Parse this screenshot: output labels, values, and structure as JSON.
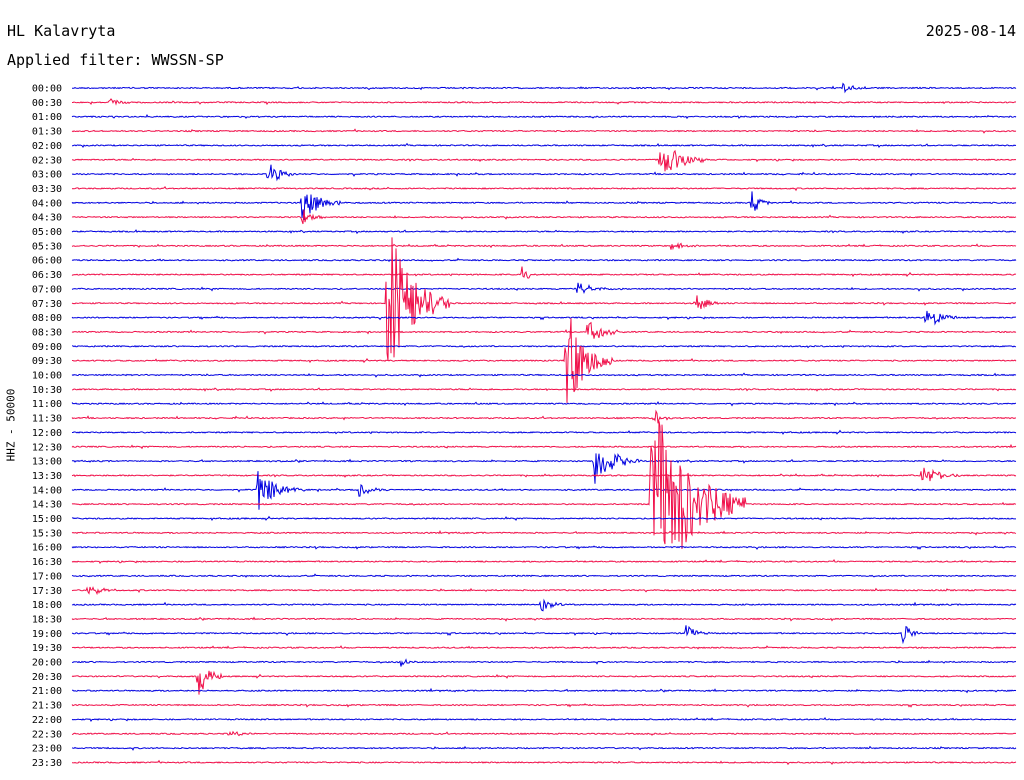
{
  "header": {
    "station": "HL Kalavryta",
    "filter": "Applied filter: WWSSN-SP",
    "date": "2025-08-14"
  },
  "colors": {
    "trace_a": "#0000e0",
    "trace_b": "#f0104a"
  },
  "chart_data": {
    "type": "helicorder",
    "title": "HL Kalavryta",
    "subtitle": "Applied filter: WWSSN-SP",
    "date": "2025-08-14",
    "ylabel": "HHZ - 50000",
    "row_minutes": 30,
    "alternating_colors": [
      "#0000e0",
      "#f0104a"
    ],
    "time_labels": [
      "00:00",
      "00:30",
      "01:00",
      "01:30",
      "02:00",
      "02:30",
      "03:00",
      "03:30",
      "04:00",
      "04:30",
      "05:00",
      "05:30",
      "06:00",
      "06:30",
      "07:00",
      "07:30",
      "08:00",
      "08:30",
      "09:00",
      "09:30",
      "10:00",
      "10:30",
      "11:00",
      "11:30",
      "12:00",
      "12:30",
      "13:00",
      "13:30",
      "14:00",
      "14:30",
      "15:00",
      "15:30",
      "16:00",
      "16:30",
      "17:00",
      "17:30",
      "18:00",
      "18:30",
      "19:00",
      "19:30",
      "20:00",
      "20:30",
      "21:00",
      "21:30",
      "22:00",
      "22:30",
      "23:00",
      "23:30"
    ],
    "events": [
      {
        "row": 0,
        "minute": 24.5,
        "amp": 0.4,
        "dur": 1.0
      },
      {
        "row": 1,
        "minute": 1.2,
        "amp": 0.3,
        "dur": 0.8
      },
      {
        "row": 5,
        "minute": 18.7,
        "amp": 1.6,
        "dur": 1.5
      },
      {
        "row": 6,
        "minute": 6.2,
        "amp": 1.0,
        "dur": 1.0
      },
      {
        "row": 8,
        "minute": 7.3,
        "amp": 1.4,
        "dur": 1.3
      },
      {
        "row": 8,
        "minute": 21.6,
        "amp": 1.0,
        "dur": 0.6
      },
      {
        "row": 9,
        "minute": 7.3,
        "amp": 0.7,
        "dur": 0.8
      },
      {
        "row": 11,
        "minute": 19.0,
        "amp": 0.4,
        "dur": 1.0
      },
      {
        "row": 13,
        "minute": 14.3,
        "amp": 0.7,
        "dur": 0.6
      },
      {
        "row": 14,
        "minute": 16.0,
        "amp": 0.5,
        "dur": 1.5
      },
      {
        "row": 15,
        "minute": 10.0,
        "amp": 6.0,
        "dur": 2.0
      },
      {
        "row": 15,
        "minute": 19.8,
        "amp": 0.7,
        "dur": 1.0
      },
      {
        "row": 16,
        "minute": 27.1,
        "amp": 1.2,
        "dur": 1.0
      },
      {
        "row": 17,
        "minute": 16.4,
        "amp": 1.5,
        "dur": 1.0
      },
      {
        "row": 19,
        "minute": 15.7,
        "amp": 4.0,
        "dur": 1.5
      },
      {
        "row": 23,
        "minute": 18.5,
        "amp": 0.6,
        "dur": 0.6
      },
      {
        "row": 26,
        "minute": 16.6,
        "amp": 1.8,
        "dur": 1.5
      },
      {
        "row": 27,
        "minute": 27.0,
        "amp": 0.9,
        "dur": 1.3
      },
      {
        "row": 28,
        "minute": 5.9,
        "amp": 1.5,
        "dur": 1.5
      },
      {
        "row": 28,
        "minute": 9.1,
        "amp": 0.5,
        "dur": 1.0
      },
      {
        "row": 29,
        "minute": 18.4,
        "amp": 8.0,
        "dur": 3.0
      },
      {
        "row": 35,
        "minute": 0.5,
        "amp": 0.5,
        "dur": 1.0
      },
      {
        "row": 36,
        "minute": 14.9,
        "amp": 0.5,
        "dur": 1.0
      },
      {
        "row": 38,
        "minute": 19.5,
        "amp": 0.7,
        "dur": 0.8
      },
      {
        "row": 38,
        "minute": 26.4,
        "amp": 1.0,
        "dur": 0.6
      },
      {
        "row": 40,
        "minute": 10.4,
        "amp": 0.4,
        "dur": 0.6
      },
      {
        "row": 41,
        "minute": 4.0,
        "amp": 1.8,
        "dur": 0.8
      },
      {
        "row": 45,
        "minute": 5.0,
        "amp": 0.3,
        "dur": 0.8
      }
    ]
  }
}
